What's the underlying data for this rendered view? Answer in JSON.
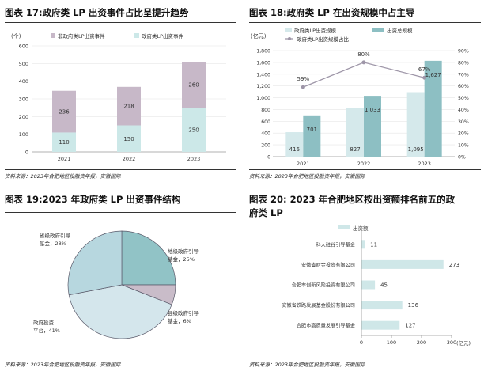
{
  "source_text": "资料来源：2023年合肥地区投融资年报，安徽国际",
  "chart_data": [
    {
      "id": "fig17",
      "type": "bar",
      "stacked": true,
      "title": "图表 17:政府类 LP 出资事件占比呈提升趋势",
      "unit": "(个)",
      "categories": [
        "2021",
        "2022",
        "2023"
      ],
      "series": [
        {
          "name": "政府类LP出资事件",
          "values": [
            110,
            150,
            250
          ],
          "color": "#cce8e8"
        },
        {
          "name": "非政府类LP出资事件",
          "values": [
            236,
            218,
            260
          ],
          "color": "#c7b8c8"
        }
      ],
      "legend_order": [
        1,
        0
      ],
      "ylim": [
        0,
        600
      ],
      "yticks": [
        0,
        100,
        200,
        300,
        400,
        500,
        600
      ],
      "legend": "top"
    },
    {
      "id": "fig18",
      "type": "bar",
      "title": "图表 18:政府类 LP 在出资规模中占主导",
      "unit": "(亿元)",
      "categories": [
        "2021",
        "2022",
        "2023"
      ],
      "series": [
        {
          "name": "政府类LP出资规模",
          "values": [
            416,
            827,
            1095
          ],
          "color": "#d5e9eb",
          "type": "bar"
        },
        {
          "name": "出资总规模",
          "values": [
            701,
            1033,
            1627
          ],
          "color": "#8dbfc3",
          "type": "bar"
        },
        {
          "name": "政府类LP出资规模占比",
          "values": [
            59,
            80,
            67
          ],
          "labels": [
            "59%",
            "80%",
            "67%"
          ],
          "color": "#9e96a8",
          "type": "line",
          "axis": "right"
        }
      ],
      "ylim": [
        0,
        1800
      ],
      "yticks": [
        0,
        200,
        400,
        600,
        800,
        1000,
        1200,
        1400,
        1600,
        1800
      ],
      "y2lim": [
        0,
        90
      ],
      "y2ticks": [
        "0%",
        "10%",
        "20%",
        "30%",
        "40%",
        "50%",
        "60%",
        "70%",
        "80%",
        "90%"
      ],
      "legend": "top"
    },
    {
      "id": "fig19",
      "type": "pie",
      "title": "图表 19:2023 年政府类 LP 出资事件结构",
      "slices": [
        {
          "label": "地级政府引导基金",
          "value": 25,
          "text": "25%",
          "color": "#91c3c6"
        },
        {
          "label": "县级政府引导基金",
          "value": 6,
          "text": "6%",
          "color": "#c9bcc9"
        },
        {
          "label": "政府投资平台",
          "value": 41,
          "text": "41%",
          "color": "#d4e6ec"
        },
        {
          "label": "省级政府引导基金",
          "value": 28,
          "text": "28%",
          "color": "#b7d7df"
        }
      ]
    },
    {
      "id": "fig20",
      "type": "bar",
      "orientation": "horizontal",
      "title_line1": "图表 20: 2023 年合肥地区按出资额排名前五的政",
      "title_line2": "府类 LP",
      "series_name": "出资额",
      "categories": [
        "科大硅谷引导基金",
        "安徽省财金投资有限公司",
        "合肥市创新风险投资有限公司",
        "安徽省铁路发展基金股份有限公司",
        "合肥市高质量发展引导基金"
      ],
      "values": [
        11,
        273,
        45,
        136,
        127
      ],
      "color": "#cfe7e8",
      "xlim": [
        0,
        300
      ],
      "xticks": [
        0,
        100,
        200,
        300
      ],
      "unit": "(亿元)",
      "legend": "top"
    }
  ]
}
